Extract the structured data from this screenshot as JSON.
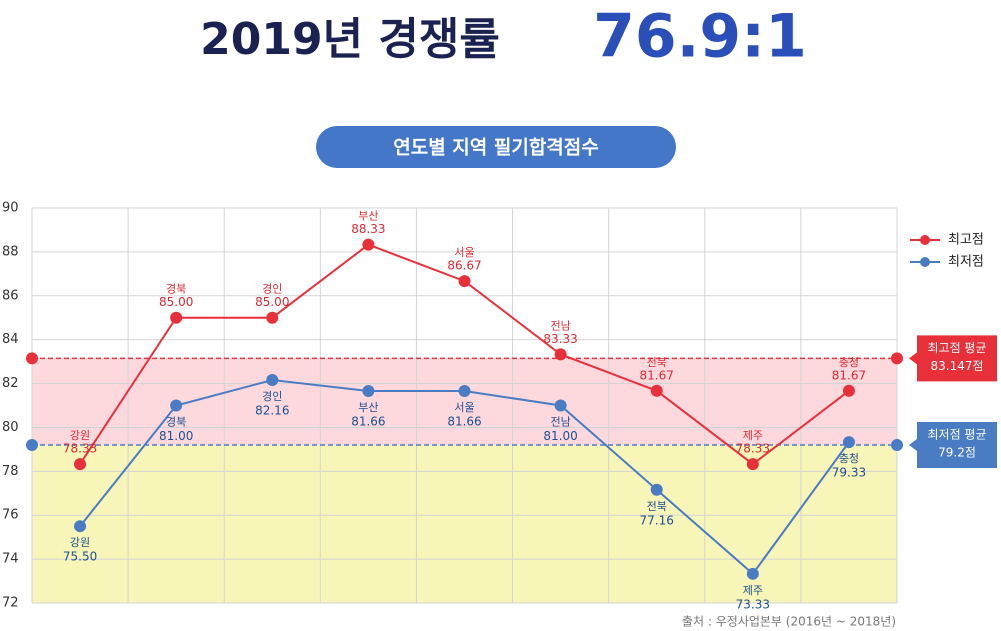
{
  "chart_data": {
    "type": "line",
    "title": "2019년 경쟁률",
    "title_highlight": "76.9:1",
    "subtitle": "연도별 지역 필기합격점수",
    "source": "출처 : 우정사업본부 (2016년 ~ 2018년)",
    "categories": [
      "강원",
      "경북",
      "경인",
      "부산",
      "서울",
      "전남",
      "전북",
      "제주",
      "충청"
    ],
    "series": [
      {
        "name": "최고점",
        "color": "#e8303a",
        "label_color": "#d92a34",
        "values": [
          78.33,
          85,
          85,
          88.33,
          86.67,
          83.33,
          81.67,
          78.33,
          81.67
        ],
        "value_labels": [
          "78.33",
          "85.00",
          "85.00",
          "88.33",
          "86.67",
          "83.33",
          "81.67",
          "78.33",
          "81.67"
        ]
      },
      {
        "name": "최저점",
        "color": "#4a7cc4",
        "label_color": "#1d4f91",
        "values": [
          75.5,
          81,
          82.16,
          81.66,
          81.66,
          81,
          77.16,
          73.33,
          79.33
        ],
        "value_labels": [
          "75.50",
          "81.00",
          "82.16",
          "81.66",
          "81.66",
          "81.00",
          "77.16",
          "73.33",
          "79.33"
        ]
      }
    ],
    "reference_lines": [
      {
        "label": "최고점 평균",
        "value": 83.147,
        "value_label": "83.147점",
        "color": "#e8303a",
        "band_color": "#fdd9de"
      },
      {
        "label": "최저점 평균",
        "value": 79.2,
        "value_label": "79.2점",
        "color": "#4a7cc4",
        "band_color": "#f8f5b9"
      }
    ],
    "ylim": [
      72,
      90
    ],
    "yticks": [
      72,
      74,
      76,
      78,
      80,
      82,
      84,
      86,
      88,
      90
    ],
    "grid": true
  }
}
